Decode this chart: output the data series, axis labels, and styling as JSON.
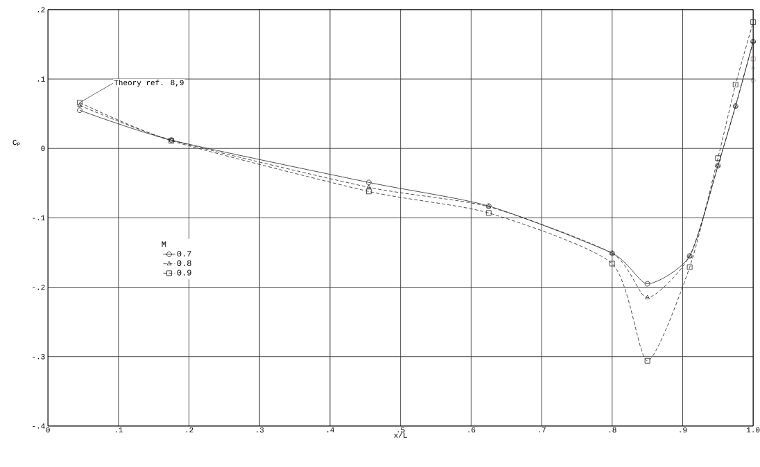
{
  "chart_data": {
    "type": "line",
    "xlabel": "x/L",
    "ylabel": "C$_{P}$",
    "legend_title": "M",
    "grid": true,
    "legend": "left",
    "xlim": [
      0,
      1.0
    ],
    "ylim": [
      -0.4,
      0.2
    ],
    "xticks": [
      0,
      {
        "value": 0.1,
        "label": ".1"
      },
      {
        "value": 0.2,
        "label": ".2"
      },
      {
        "value": 0.3,
        "label": ".3"
      },
      {
        "value": 0.4,
        "label": ".4"
      },
      {
        "value": 0.5,
        "label": ".5"
      },
      {
        "value": 0.6,
        "label": ".6"
      },
      {
        "value": 0.7,
        "label": ".7"
      },
      {
        "value": 0.8,
        "label": ".8"
      },
      {
        "value": 0.9,
        "label": ".9"
      },
      {
        "value": 1.0,
        "label": "1.0"
      }
    ],
    "yticks": [
      {
        "value": -0.4,
        "label": "-.4"
      },
      {
        "value": -0.3,
        "label": "-.3"
      },
      {
        "value": -0.2,
        "label": "-.2"
      },
      {
        "value": -0.1,
        "label": "-.1"
      },
      0,
      {
        "value": 0.1,
        "label": ".1"
      },
      {
        "value": 0.2,
        "label": ".2"
      }
    ],
    "annotations": [
      {
        "text": "Theory ref. 8,9",
        "x": 0.045,
        "y": 0.066
      }
    ],
    "series": [
      {
        "name": "0.7",
        "color": "#222222",
        "marker": "circle",
        "line_style": "solid",
        "x": [
          0.045,
          0.175,
          0.455,
          0.625,
          0.8,
          0.85,
          0.91,
          0.95,
          0.975,
          1.0
        ],
        "values": [
          0.055,
          0.012,
          -0.049,
          -0.083,
          -0.151,
          -0.195,
          -0.155,
          -0.025,
          0.061,
          0.154
        ]
      },
      {
        "name": "0.8",
        "color": "#222222",
        "marker": "triangle",
        "line_style": "dashed",
        "x": [
          0.045,
          0.175,
          0.455,
          0.625,
          0.8,
          0.85,
          0.91,
          0.95,
          0.975,
          1.0
        ],
        "values": [
          0.062,
          0.012,
          -0.056,
          -0.084,
          -0.151,
          -0.215,
          -0.155,
          -0.025,
          0.061,
          0.154
        ]
      },
      {
        "name": "0.9",
        "color": "#222222",
        "marker": "square",
        "line_style": "dashed",
        "x": [
          0.045,
          0.175,
          0.455,
          0.625,
          0.8,
          0.85,
          0.91,
          0.95,
          0.975,
          1.0
        ],
        "values": [
          0.066,
          0.011,
          -0.062,
          -0.093,
          -0.166,
          -0.306,
          -0.171,
          -0.014,
          0.092,
          0.182
        ]
      },
      {
        "type": "scatter",
        "color": "#7a1f1f",
        "marker": "square",
        "x": [
          1.0
        ],
        "values": [
          0.129
        ]
      },
      {
        "type": "scatter",
        "color": "#7a1f1f",
        "marker": "triangle",
        "x": [
          1.0
        ],
        "values": [
          0.116
        ]
      },
      {
        "type": "scatter",
        "color": "#1a1a1a",
        "marker": "circle",
        "x": [
          1.0
        ],
        "values": [
          0.098
        ]
      }
    ]
  }
}
